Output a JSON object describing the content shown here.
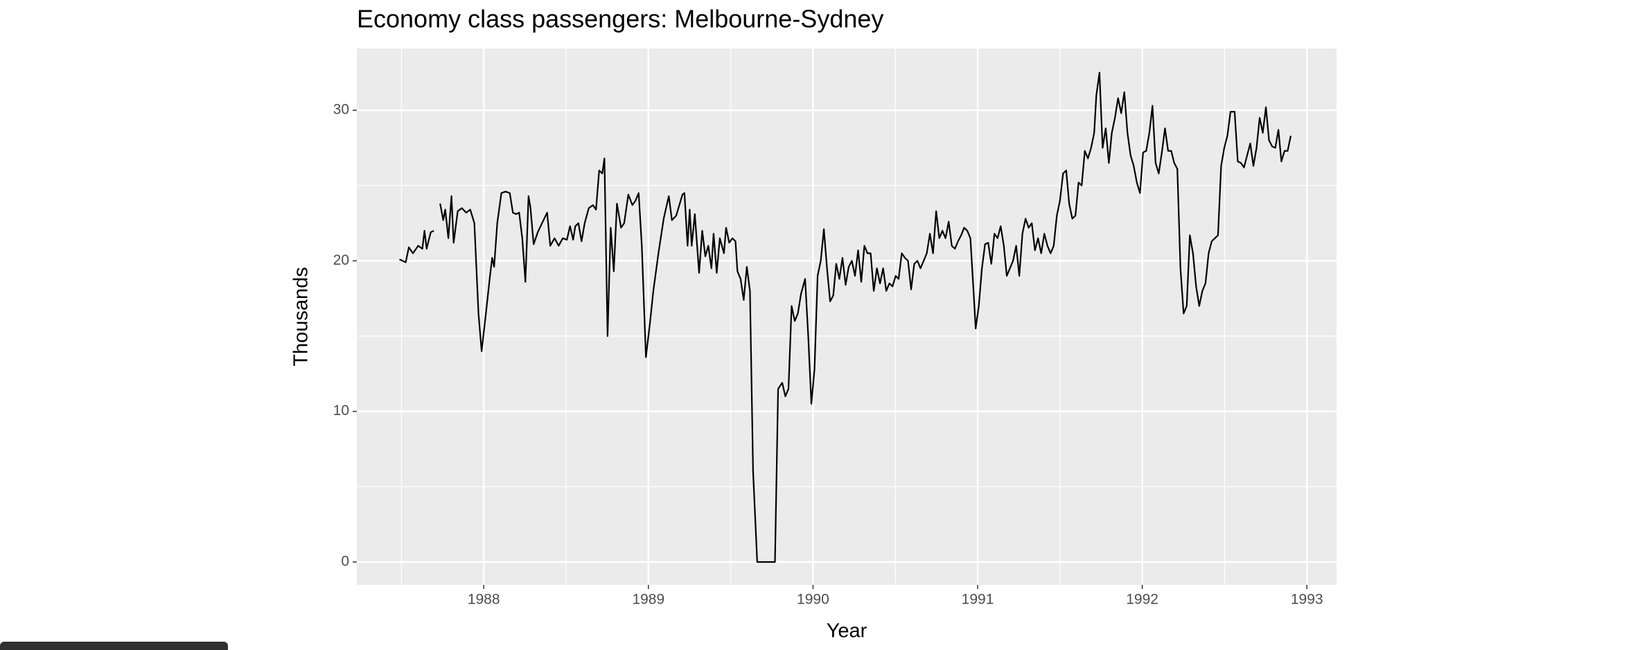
{
  "chart_data": {
    "type": "line",
    "title": "Economy class passengers: Melbourne-Sydney",
    "x_label": "Year",
    "y_label": "Thousands",
    "x": [
      1987.488,
      1987.526,
      1987.545,
      1987.57,
      1987.602,
      1987.627,
      1987.64,
      1987.653,
      1987.678,
      1987.697,
      1987.716,
      1987.735,
      1987.754,
      1987.766,
      1987.785,
      1987.804,
      1987.817,
      1987.842,
      1987.867,
      1987.893,
      1987.918,
      1987.943,
      1987.968,
      1987.987,
      1988.013,
      1988.038,
      1988.051,
      1988.063,
      1988.082,
      1988.107,
      1988.133,
      1988.158,
      1988.177,
      1988.196,
      1988.215,
      1988.234,
      1988.253,
      1988.272,
      1988.284,
      1988.303,
      1988.328,
      1988.354,
      1988.385,
      1988.404,
      1988.43,
      1988.455,
      1988.48,
      1988.505,
      1988.524,
      1988.543,
      1988.556,
      1988.575,
      1988.594,
      1988.613,
      1988.638,
      1988.663,
      1988.682,
      1988.701,
      1988.72,
      1988.733,
      1988.752,
      1988.771,
      1988.79,
      1988.809,
      1988.834,
      1988.853,
      1988.878,
      1988.903,
      1988.922,
      1988.941,
      1988.96,
      1988.985,
      1989.011,
      1989.03,
      1989.061,
      1989.093,
      1989.124,
      1989.143,
      1989.169,
      1989.188,
      1989.207,
      1989.219,
      1989.238,
      1989.251,
      1989.263,
      1989.282,
      1989.308,
      1989.327,
      1989.346,
      1989.364,
      1989.383,
      1989.396,
      1989.415,
      1989.434,
      1989.459,
      1989.472,
      1989.491,
      1989.51,
      1989.529,
      1989.541,
      1989.56,
      1989.579,
      1989.598,
      1989.617,
      1989.636,
      1989.661,
      1989.687,
      1989.712,
      1989.737,
      1989.769,
      1989.788,
      1989.813,
      1989.832,
      1989.851,
      1989.87,
      1989.889,
      1989.908,
      1989.927,
      1989.952,
      1989.971,
      1989.99,
      1990.009,
      1990.028,
      1990.047,
      1990.066,
      1990.085,
      1990.104,
      1990.123,
      1990.141,
      1990.16,
      1990.179,
      1990.198,
      1990.217,
      1990.236,
      1990.255,
      1990.274,
      1990.293,
      1990.312,
      1990.331,
      1990.35,
      1990.369,
      1990.388,
      1990.407,
      1990.426,
      1990.445,
      1990.464,
      1990.483,
      1990.502,
      1990.52,
      1990.539,
      1990.558,
      1990.577,
      1990.596,
      1990.615,
      1990.634,
      1990.653,
      1990.672,
      1990.691,
      1990.71,
      1990.729,
      1990.748,
      1990.767,
      1990.786,
      1990.805,
      1990.824,
      1990.843,
      1990.862,
      1990.881,
      1990.9,
      1990.918,
      1990.937,
      1990.956,
      1990.975,
      1990.988,
      1991.007,
      1991.026,
      1991.045,
      1991.064,
      1991.083,
      1991.102,
      1991.121,
      1991.14,
      1991.159,
      1991.177,
      1991.196,
      1991.215,
      1991.234,
      1991.253,
      1991.272,
      1991.291,
      1991.31,
      1991.329,
      1991.348,
      1991.367,
      1991.386,
      1991.405,
      1991.424,
      1991.443,
      1991.462,
      1991.481,
      1991.5,
      1991.519,
      1991.538,
      1991.556,
      1991.575,
      1991.594,
      1991.613,
      1991.632,
      1991.651,
      1991.67,
      1991.689,
      1991.708,
      1991.721,
      1991.74,
      1991.759,
      1991.778,
      1991.797,
      1991.815,
      1991.834,
      1991.853,
      1991.872,
      1991.891,
      1991.91,
      1991.929,
      1991.948,
      1991.967,
      1991.986,
      1992.005,
      1992.024,
      1992.043,
      1992.062,
      1992.081,
      1992.1,
      1992.119,
      1992.138,
      1992.157,
      1992.176,
      1992.194,
      1992.213,
      1992.232,
      1992.251,
      1992.27,
      1992.289,
      1992.308,
      1992.327,
      1992.346,
      1992.365,
      1992.384,
      1992.403,
      1992.422,
      1992.441,
      1992.46,
      1992.479,
      1992.498,
      1992.517,
      1992.536,
      1992.561,
      1992.58,
      1992.599,
      1992.618,
      1992.637,
      1992.656,
      1992.675,
      1992.694,
      1992.713,
      1992.732,
      1992.751,
      1992.77,
      1992.789,
      1992.808,
      1992.827,
      1992.845,
      1992.864,
      1992.883,
      1992.902
    ],
    "values": [
      20.1,
      19.9,
      20.9,
      20.5,
      21.0,
      20.8,
      22.0,
      20.8,
      21.9,
      22.0,
      null,
      23.8,
      22.7,
      23.4,
      21.5,
      24.3,
      21.2,
      23.3,
      23.5,
      23.2,
      23.4,
      22.5,
      16.5,
      14.0,
      16.5,
      19.0,
      20.2,
      19.6,
      22.5,
      24.5,
      24.6,
      24.5,
      23.2,
      23.1,
      23.2,
      21.5,
      18.6,
      24.3,
      23.5,
      21.1,
      21.9,
      22.5,
      23.2,
      21.0,
      21.5,
      21.0,
      21.5,
      21.4,
      22.3,
      21.4,
      22.3,
      22.5,
      21.3,
      22.5,
      23.5,
      23.7,
      23.4,
      26.0,
      25.8,
      26.8,
      15.0,
      22.2,
      19.3,
      23.8,
      22.2,
      22.5,
      24.4,
      23.7,
      24.0,
      24.5,
      21.0,
      13.6,
      16.0,
      18.0,
      20.5,
      22.8,
      24.3,
      22.7,
      23.0,
      23.7,
      24.4,
      24.5,
      21.0,
      23.4,
      21.0,
      23.1,
      19.2,
      22.0,
      20.3,
      21.0,
      19.5,
      21.8,
      19.2,
      21.5,
      20.5,
      22.2,
      21.2,
      21.5,
      21.3,
      19.3,
      18.8,
      17.4,
      19.6,
      18.0,
      6.0,
      0,
      0,
      0,
      0,
      0,
      11.5,
      11.9,
      11.0,
      11.5,
      17.0,
      16.0,
      16.5,
      17.8,
      18.8,
      15.0,
      10.5,
      12.8,
      19.0,
      20.0,
      22.1,
      19.5,
      17.3,
      17.7,
      19.8,
      18.8,
      20.2,
      18.4,
      19.6,
      20.0,
      19.0,
      20.7,
      18.6,
      21.0,
      20.5,
      20.5,
      18.0,
      19.5,
      18.5,
      19.5,
      18.0,
      18.5,
      18.3,
      19.0,
      18.8,
      20.5,
      20.2,
      20.0,
      18.1,
      19.8,
      20.0,
      19.5,
      20.0,
      20.5,
      21.8,
      20.5,
      23.3,
      21.5,
      22.0,
      21.5,
      22.6,
      21.0,
      20.8,
      21.3,
      21.7,
      22.2,
      22.0,
      21.5,
      18.0,
      15.5,
      17.0,
      19.5,
      21.1,
      21.2,
      19.8,
      21.8,
      21.5,
      22.3,
      21.0,
      19.0,
      19.5,
      20.0,
      21.0,
      19.0,
      21.8,
      22.8,
      22.2,
      22.5,
      20.7,
      21.5,
      20.5,
      21.8,
      21.0,
      20.5,
      21.0,
      23.0,
      24.0,
      25.8,
      26.0,
      23.8,
      22.8,
      23.0,
      25.2,
      25.0,
      27.3,
      26.8,
      27.5,
      28.5,
      31.0,
      32.5,
      27.5,
      28.8,
      26.5,
      28.5,
      29.5,
      30.8,
      29.8,
      31.2,
      28.5,
      27.0,
      26.3,
      25.2,
      24.5,
      27.2,
      27.3,
      28.5,
      30.3,
      26.5,
      25.8,
      27.2,
      28.8,
      27.3,
      27.3,
      26.5,
      26.1,
      19.5,
      16.5,
      17.0,
      21.7,
      20.5,
      18.3,
      17.0,
      18.0,
      18.5,
      20.5,
      21.3,
      21.5,
      21.7,
      26.3,
      27.5,
      28.3,
      29.9,
      29.9,
      26.6,
      26.5,
      26.2,
      27.0,
      27.8,
      26.3,
      27.5,
      29.5,
      28.5,
      30.2,
      28.0,
      27.6,
      27.5,
      28.7,
      26.6,
      27.3,
      27.3,
      28.3
    ],
    "color": "#000000",
    "background": "#ebebeb",
    "grid": true,
    "xlim": [
      1987.229,
      1993.18
    ],
    "xticks": [
      1988,
      1989,
      1990,
      1991,
      1992,
      1993
    ],
    "ylim": [
      -1.52,
      34.1
    ],
    "yticks": [
      0,
      10,
      20,
      30
    ]
  }
}
